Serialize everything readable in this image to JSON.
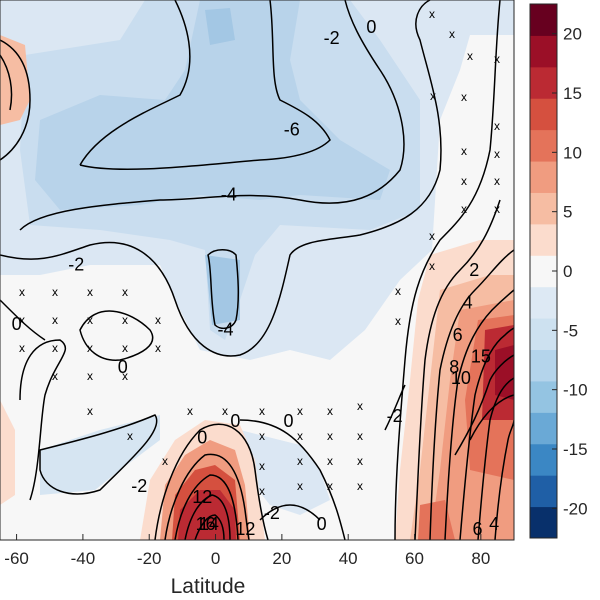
{
  "chart_data": {
    "type": "heatmap",
    "title": "",
    "xlabel": "Latitude",
    "ylabel": "",
    "xlim": [
      -65,
      90
    ],
    "x_ticks": [
      "-60",
      "-40",
      "-20",
      "0",
      "20",
      "40",
      "60",
      "80"
    ],
    "colorbar": {
      "ticks": [
        "20",
        "15",
        "10",
        "5",
        "0",
        "-5",
        "-10",
        "-15",
        "-20"
      ],
      "range": [
        -22.5,
        22.5
      ],
      "colors": [
        "#08306b",
        "#1f5fa6",
        "#3b87c4",
        "#6aa9d6",
        "#94c4e2",
        "#b4d4eb",
        "#cde1f0",
        "#dde9f4",
        "#f7f7f7",
        "#fbdccd",
        "#f6bda3",
        "#f09c80",
        "#e4735a",
        "#d5503f",
        "#bb2a33",
        "#9b0f27",
        "#67001f"
      ]
    },
    "contour_labels": [
      {
        "text": "-2",
        "x": 35,
        "y": 0.93
      },
      {
        "text": "0",
        "x": 47,
        "y": 0.95
      },
      {
        "text": "-6",
        "x": 23,
        "y": 0.76
      },
      {
        "text": "-4",
        "x": 4,
        "y": 0.64
      },
      {
        "text": "-2",
        "x": -42,
        "y": 0.51
      },
      {
        "text": "0",
        "x": -60,
        "y": 0.4
      },
      {
        "text": "0",
        "x": -28,
        "y": 0.32
      },
      {
        "text": "-4",
        "x": 3,
        "y": 0.39
      },
      {
        "text": "0",
        "x": 6,
        "y": 0.22
      },
      {
        "text": "0",
        "x": -4,
        "y": 0.19
      },
      {
        "text": "0",
        "x": 22,
        "y": 0.22
      },
      {
        "text": "-2",
        "x": -23,
        "y": 0.1
      },
      {
        "text": "-2",
        "x": 17,
        "y": 0.05
      },
      {
        "text": "0",
        "x": 32,
        "y": 0.03
      },
      {
        "text": "-2",
        "x": 54,
        "y": 0.23
      },
      {
        "text": "2",
        "x": 78,
        "y": 0.5
      },
      {
        "text": "4",
        "x": 76,
        "y": 0.44
      },
      {
        "text": "6",
        "x": 73,
        "y": 0.38
      },
      {
        "text": "8",
        "x": 72,
        "y": 0.32
      },
      {
        "text": "10",
        "x": 74,
        "y": 0.3
      },
      {
        "text": "15",
        "x": 80,
        "y": 0.34
      },
      {
        "text": "12",
        "x": -4,
        "y": 0.08
      },
      {
        "text": "16",
        "x": -3,
        "y": 0.03
      },
      {
        "text": "14",
        "x": -2,
        "y": 0.03
      },
      {
        "text": "12",
        "x": 9,
        "y": 0.02
      },
      {
        "text": "4",
        "x": 84,
        "y": 0.03
      },
      {
        "text": "6",
        "x": 79,
        "y": 0.02
      }
    ],
    "significance_marker": "x"
  }
}
